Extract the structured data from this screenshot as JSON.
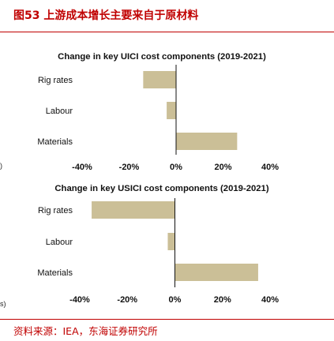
{
  "figure": {
    "title": "图53  上游成本增长主要来自于原材料",
    "source": "资料来源：IEA，东海证券研究所",
    "edge_marks": [
      ")",
      "s)"
    ]
  },
  "colors": {
    "bar": "#cbbf97",
    "axis": "#111111",
    "accent": "#c00000"
  },
  "chart_data": [
    {
      "type": "bar",
      "orientation": "horizontal",
      "title": "Change in key UICI cost components (2019-2021)",
      "categories": [
        "Rig rates",
        "Labour",
        "Materials"
      ],
      "values": [
        -14,
        -4,
        26
      ],
      "xlim": [
        -40,
        40
      ],
      "ticks": [
        -40,
        -20,
        0,
        20,
        40
      ],
      "tick_labels": [
        "-40%",
        "-20%",
        "0%",
        "20%",
        "40%"
      ],
      "grid": false,
      "legend": "none"
    },
    {
      "type": "bar",
      "orientation": "horizontal",
      "title": "Change in key USICI cost components (2019-2021)",
      "categories": [
        "Rig rates",
        "Labour",
        "Materials"
      ],
      "values": [
        -35,
        -3,
        35
      ],
      "xlim": [
        -40,
        40
      ],
      "ticks": [
        -40,
        -20,
        0,
        20,
        40
      ],
      "tick_labels": [
        "-40%",
        "-20%",
        "0%",
        "20%",
        "40%"
      ],
      "grid": false,
      "legend": "none"
    }
  ]
}
